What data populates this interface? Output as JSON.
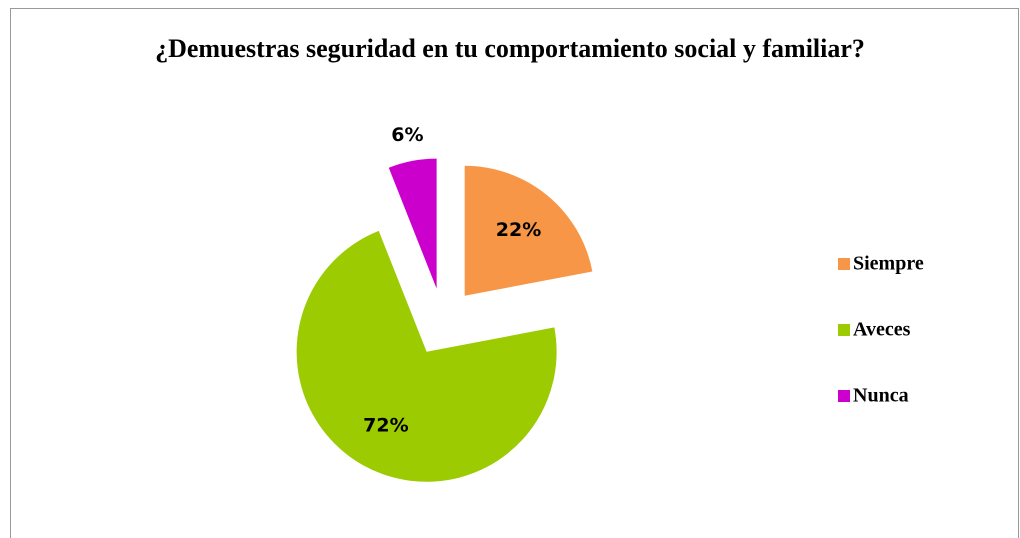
{
  "chart_data": {
    "type": "pie",
    "title": "¿Demuestras seguridad en tu comportamiento social y familiar?",
    "categories": [
      "Siempre",
      "Aveces",
      "Nunca"
    ],
    "values": [
      22,
      72,
      6
    ],
    "value_labels": [
      "22%",
      "72%",
      "6%"
    ],
    "colors": [
      "#f79646",
      "#9bcb00",
      "#cc00cc"
    ],
    "exploded": true,
    "legend": "right"
  }
}
